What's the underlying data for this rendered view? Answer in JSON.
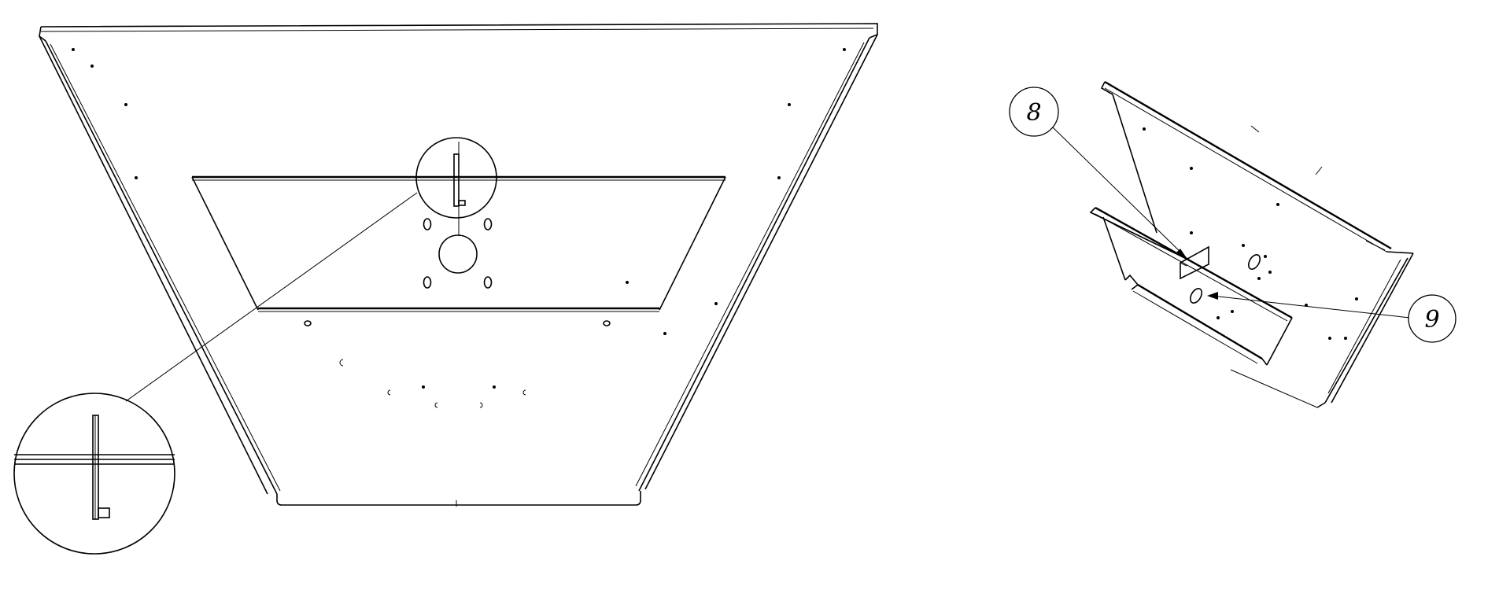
{
  "balloons": {
    "item_8": "8",
    "item_9": "9"
  },
  "colors": {
    "line": "#000000",
    "background": "#ffffff"
  }
}
